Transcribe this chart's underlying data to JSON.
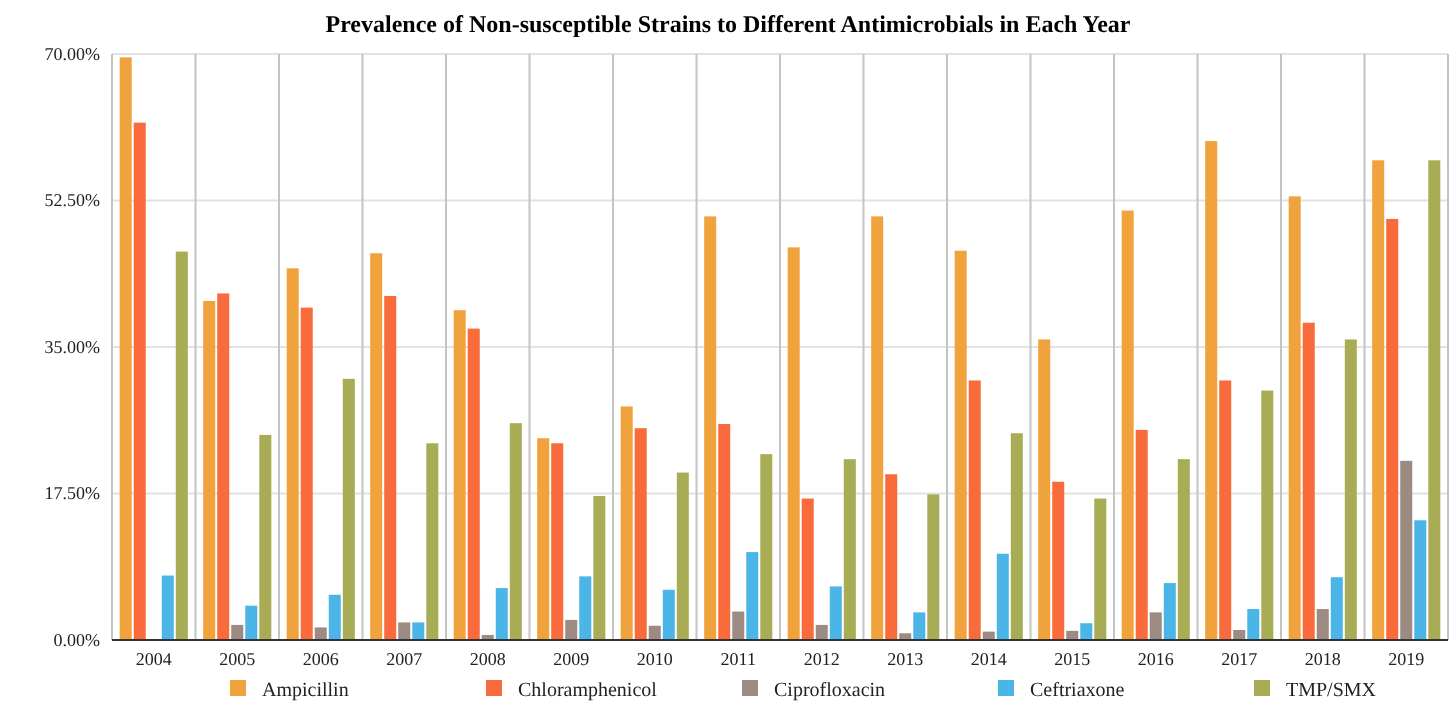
{
  "chart_data": {
    "type": "bar",
    "title": "Prevalence of Non-susceptible Strains to Different Antimicrobials in Each Year",
    "categories": [
      "2004",
      "2005",
      "2006",
      "2007",
      "2008",
      "2009",
      "2010",
      "2011",
      "2012",
      "2013",
      "2014",
      "2015",
      "2016",
      "2017",
      "2018",
      "2019"
    ],
    "series": [
      {
        "name": "Ampicillin",
        "color": "#f0a23c",
        "values": [
          69.6,
          40.5,
          44.4,
          46.2,
          39.4,
          24.1,
          27.9,
          50.6,
          46.9,
          50.6,
          46.5,
          35.9,
          51.3,
          59.6,
          53.0,
          57.3
        ]
      },
      {
        "name": "Chloramphenicol",
        "color": "#fa6b3c",
        "values": [
          61.8,
          41.4,
          39.7,
          41.1,
          37.2,
          23.5,
          25.3,
          25.8,
          16.9,
          19.8,
          31.0,
          18.9,
          25.1,
          31.0,
          37.9,
          50.3
        ]
      },
      {
        "name": "Ciprofloxacin",
        "color": "#9b8b82",
        "values": [
          0,
          1.8,
          1.5,
          2.1,
          0.6,
          2.4,
          1.7,
          3.4,
          1.8,
          0.8,
          1.0,
          1.1,
          3.3,
          1.2,
          3.7,
          21.4
        ]
      },
      {
        "name": "Ceftriaxone",
        "color": "#4bb5e8",
        "values": [
          7.7,
          4.1,
          5.4,
          2.1,
          6.2,
          7.6,
          6.0,
          10.5,
          6.4,
          3.3,
          10.3,
          2.0,
          6.8,
          3.7,
          7.5,
          14.3
        ]
      },
      {
        "name": "TMP/SMX",
        "color": "#a8ad55",
        "values": [
          46.4,
          24.5,
          31.2,
          23.5,
          25.9,
          17.2,
          20.0,
          22.2,
          21.6,
          17.4,
          24.7,
          16.9,
          21.6,
          29.8,
          35.9,
          57.3
        ]
      }
    ],
    "ylim": [
      0,
      70
    ],
    "yticks": [
      {
        "value": 0,
        "label": "0.00%"
      },
      {
        "value": 17.5,
        "label": "17.50%"
      },
      {
        "value": 35,
        "label": "35.00%"
      },
      {
        "value": 52.5,
        "label": "52.50%"
      },
      {
        "value": 70,
        "label": "70.00%"
      }
    ],
    "grid": true,
    "legend": "bottom"
  }
}
